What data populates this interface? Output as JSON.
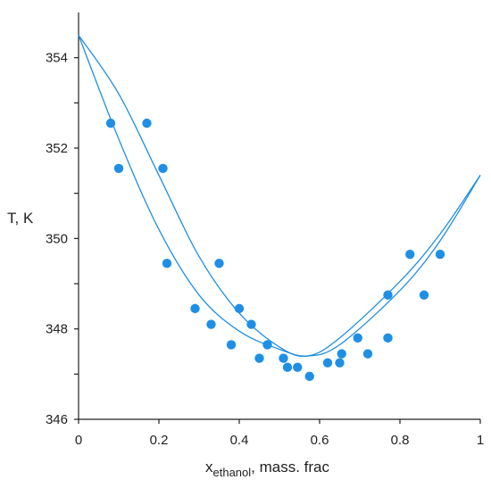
{
  "chart_data": {
    "type": "scatter",
    "title": "",
    "xlabel": {
      "main": "x",
      "sub": "ethanol",
      "rest": ", mass. frac"
    },
    "ylabel": "T, K",
    "xlim": [
      0,
      1
    ],
    "ylim": [
      346,
      355
    ],
    "x_ticks": [
      0,
      0.2,
      0.4,
      0.6,
      0.8,
      1
    ],
    "x_tick_labels": [
      "0",
      "0.2",
      "0.4",
      "0.6",
      "0.8",
      "1"
    ],
    "y_ticks": [
      346,
      348,
      350,
      352,
      354
    ],
    "y_tick_labels": [
      "346",
      "348",
      "350",
      "352",
      "354"
    ],
    "y_minor_ticks": [
      347,
      349,
      351,
      353
    ],
    "grid": false,
    "color": "#1f8fe5",
    "series": [
      {
        "kind": "points",
        "x": [
          0.08,
          0.17,
          0.1,
          0.21,
          0.22,
          0.35,
          0.29,
          0.33,
          0.38,
          0.4,
          0.43,
          0.45,
          0.47,
          0.51,
          0.52,
          0.545,
          0.575,
          0.62,
          0.65,
          0.655,
          0.695,
          0.72,
          0.77,
          0.77,
          0.825,
          0.86,
          0.9
        ],
        "y": [
          352.55,
          352.55,
          351.55,
          351.55,
          349.45,
          349.45,
          348.45,
          348.1,
          347.65,
          348.45,
          348.1,
          347.35,
          347.65,
          347.35,
          347.15,
          347.15,
          346.95,
          347.25,
          347.25,
          347.45,
          347.8,
          347.45,
          347.8,
          348.75,
          349.65,
          348.75,
          349.65
        ]
      },
      {
        "kind": "curve",
        "x": [
          0,
          0.1,
          0.2,
          0.3,
          0.4,
          0.5,
          0.57,
          0.65,
          0.8,
          0.9,
          1.0
        ],
        "y": [
          354.5,
          352.2,
          350.2,
          348.75,
          347.95,
          347.55,
          347.4,
          347.65,
          348.85,
          349.95,
          351.4
        ]
      },
      {
        "kind": "curve",
        "x": [
          0,
          0.1,
          0.2,
          0.3,
          0.4,
          0.5,
          0.57,
          0.65,
          0.8,
          0.9,
          1.0
        ],
        "y": [
          354.5,
          353.2,
          351.4,
          349.6,
          348.35,
          347.6,
          347.4,
          347.8,
          349.05,
          350.1,
          351.4
        ]
      }
    ]
  }
}
